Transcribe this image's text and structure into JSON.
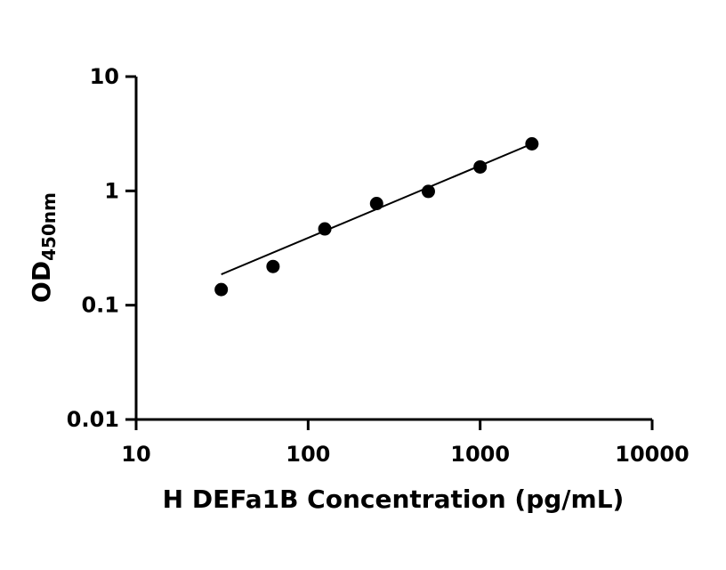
{
  "chart_data": {
    "type": "scatter",
    "xscale": "log",
    "yscale": "log",
    "xlim": [
      10,
      10000
    ],
    "ylim": [
      0.01,
      10
    ],
    "x_ticks": [
      10,
      100,
      1000,
      10000
    ],
    "x_tick_labels": [
      "10",
      "100",
      "1000",
      "10000"
    ],
    "y_ticks": [
      0.01,
      0.1,
      1,
      10
    ],
    "y_tick_labels": [
      "0.01",
      "0.1",
      "1",
      "10"
    ],
    "xlabel": "H DEFa1B Concentration (pg/mL)",
    "ylabel_main": "OD",
    "ylabel_sub": "450nm",
    "grid": false,
    "points": [
      {
        "x": 31.25,
        "y": 0.137
      },
      {
        "x": 62.5,
        "y": 0.218
      },
      {
        "x": 125,
        "y": 0.465
      },
      {
        "x": 250,
        "y": 0.775
      },
      {
        "x": 500,
        "y": 0.99
      },
      {
        "x": 1000,
        "y": 1.62
      },
      {
        "x": 2000,
        "y": 2.58
      }
    ],
    "fit_line": [
      {
        "x": 31.25,
        "y": 0.186
      },
      {
        "x": 2000,
        "y": 2.58
      }
    ]
  }
}
